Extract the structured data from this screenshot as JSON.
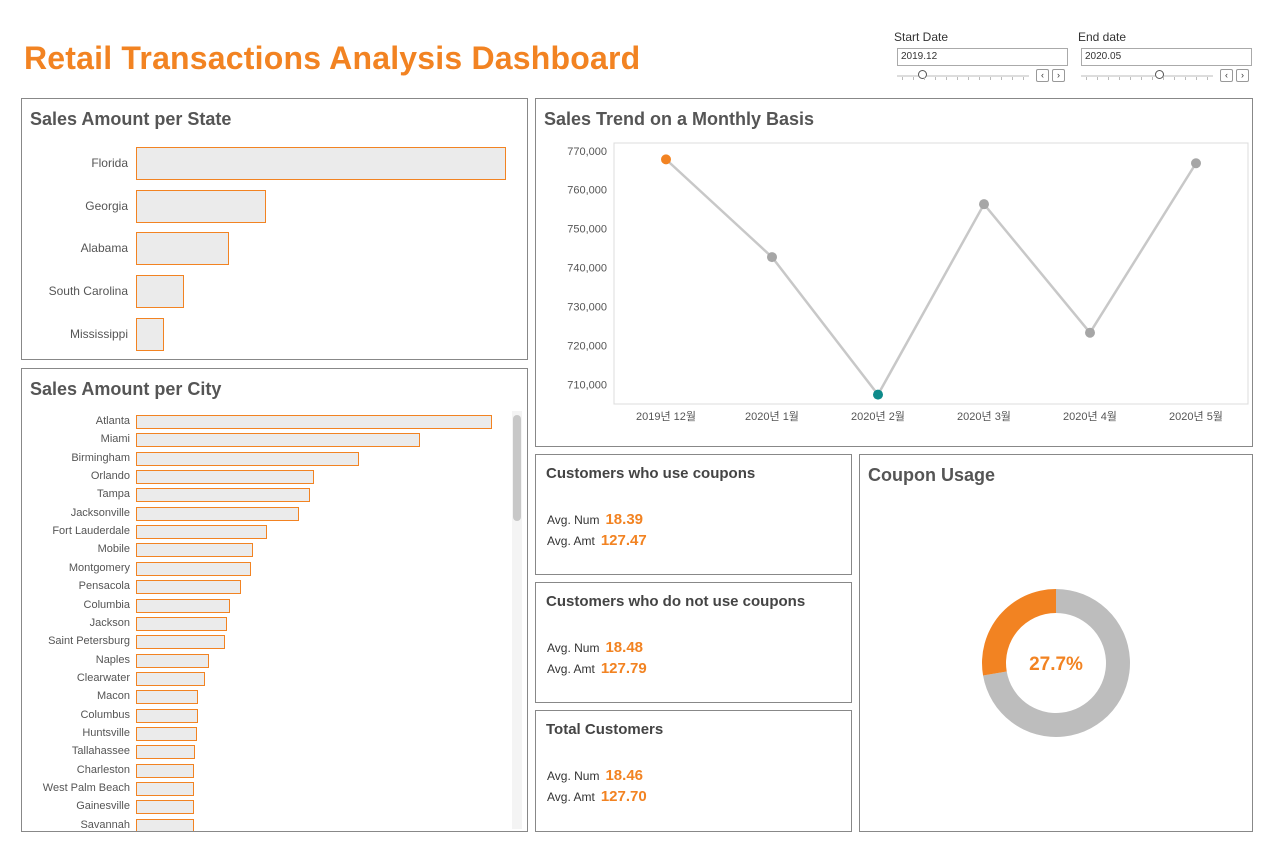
{
  "header": {
    "title": "Retail Transactions Analysis Dashboard",
    "start_date": {
      "label": "Start Date",
      "value": "2019.12"
    },
    "end_date": {
      "label": "End date",
      "value": "2020.05"
    }
  },
  "colors": {
    "accent": "#f28322",
    "teal": "#0e8a8a",
    "grey": "#a6a6a6",
    "donut_grey": "#bdbdbd"
  },
  "state_panel": {
    "title": "Sales Amount per State",
    "items": [
      {
        "label": "Florida",
        "value": 1.0
      },
      {
        "label": "Georgia",
        "value": 0.35
      },
      {
        "label": "Alabama",
        "value": 0.25
      },
      {
        "label": "South Carolina",
        "value": 0.13
      },
      {
        "label": "Mississippi",
        "value": 0.075
      }
    ]
  },
  "city_panel": {
    "title": "Sales Amount per City",
    "items": [
      {
        "label": "Atlanta",
        "value": 1.0
      },
      {
        "label": "Miami",
        "value": 0.799
      },
      {
        "label": "Birmingham",
        "value": 0.627
      },
      {
        "label": "Orlando",
        "value": 0.5
      },
      {
        "label": "Tampa",
        "value": 0.488
      },
      {
        "label": "Jacksonville",
        "value": 0.457
      },
      {
        "label": "Fort Lauderdale",
        "value": 0.368
      },
      {
        "label": "Mobile",
        "value": 0.329
      },
      {
        "label": "Montgomery",
        "value": 0.324
      },
      {
        "label": "Pensacola",
        "value": 0.294
      },
      {
        "label": "Columbia",
        "value": 0.264
      },
      {
        "label": "Jackson",
        "value": 0.256
      },
      {
        "label": "Saint Petersburg",
        "value": 0.25
      },
      {
        "label": "Naples",
        "value": 0.206
      },
      {
        "label": "Clearwater",
        "value": 0.195
      },
      {
        "label": "Macon",
        "value": 0.175
      },
      {
        "label": "Columbus",
        "value": 0.173
      },
      {
        "label": "Huntsville",
        "value": 0.17
      },
      {
        "label": "Tallahassee",
        "value": 0.167
      },
      {
        "label": "Charleston",
        "value": 0.164
      },
      {
        "label": "West Palm Beach",
        "value": 0.164
      },
      {
        "label": "Gainesville",
        "value": 0.164
      },
      {
        "label": "Savannah",
        "value": 0.164
      }
    ]
  },
  "trend_panel": {
    "title": "Sales Trend on a Monthly Basis"
  },
  "chart_data": {
    "type": "line",
    "x": [
      "2019년 12월",
      "2020년 1월",
      "2020년 2월",
      "2020년 3월",
      "2020년 4월",
      "2020년 5월"
    ],
    "series": [
      {
        "values": [
          767800,
          742700,
          707400,
          756300,
          723300,
          766800
        ]
      }
    ],
    "ylim": [
      705000,
      772000
    ],
    "yticks": [
      {
        "value": 710000,
        "label": "710,000"
      },
      {
        "value": 720000,
        "label": "720,000"
      },
      {
        "value": 730000,
        "label": "730,000"
      },
      {
        "value": 740000,
        "label": "740,000"
      },
      {
        "value": 750000,
        "label": "750,000"
      },
      {
        "value": 760000,
        "label": "760,000"
      },
      {
        "value": 770000,
        "label": "770,000"
      }
    ],
    "highlight": {
      "max_index": 0,
      "min_index": 2
    }
  },
  "kpis": [
    {
      "title": "Customers who use coupons",
      "num_label": "Avg. Num",
      "num": "18.39",
      "amt_label": "Avg. Amt",
      "amt": "127.47"
    },
    {
      "title": "Customers who do not use coupons",
      "num_label": "Avg. Num",
      "num": "18.48",
      "amt_label": "Avg. Amt",
      "amt": "127.79"
    },
    {
      "title": "Total Customers",
      "num_label": "Avg. Num",
      "num": "18.46",
      "amt_label": "Avg. Amt",
      "amt": "127.70"
    }
  ],
  "coupon_panel": {
    "title": "Coupon Usage",
    "percent_label": "27.7%",
    "share": 0.277
  }
}
